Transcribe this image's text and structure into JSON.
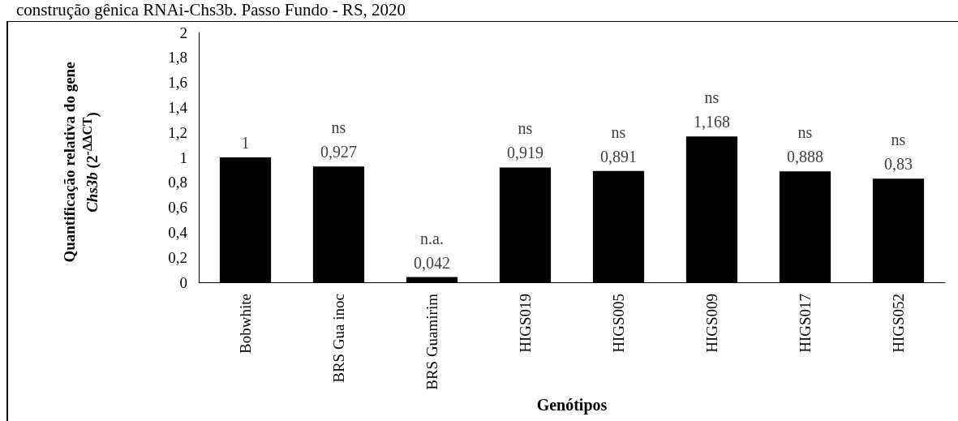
{
  "chart_data": {
    "type": "bar",
    "title": "construção gênica RNAi-Chs3b. Passo Fundo - RS, 2020",
    "xlabel": "Genótipos",
    "ylabel": "Quantificação relativa do gene $^{}$Chs3b (2$^{-ΔΔCT}$)",
    "categories": [
      "Bobwhite",
      "BRS Gua inoc",
      "BRS Guamirim",
      "HIGS019",
      "HIGS005",
      "HIGS009",
      "HIGS017",
      "HIGS052"
    ],
    "values": [
      1,
      0.927,
      0.042,
      0.919,
      0.891,
      1.168,
      0.888,
      0.83
    ],
    "value_labels": [
      "1",
      "0,927",
      "0,042",
      "0,919",
      "0,891",
      "1,168",
      "0,888",
      "0,83"
    ],
    "color": "#000000",
    "ylim": [
      0,
      2
    ],
    "yticks": [
      0,
      {
        "value": 0.2,
        "label": "0,2"
      },
      {
        "value": 0.4,
        "label": "0,4"
      },
      {
        "value": 0.6,
        "label": "0,6"
      },
      {
        "value": 0.8,
        "label": "0,8"
      },
      1,
      {
        "value": 1.2,
        "label": "1,2"
      },
      {
        "value": 1.4,
        "label": "1,4"
      },
      {
        "value": 1.6,
        "label": "1,6"
      },
      {
        "value": 1.8,
        "label": "1,8"
      },
      2
    ],
    "annotations": [
      {
        "text": "ns",
        "x": "BRS Gua inoc",
        "y": 0.927
      },
      {
        "text": "n.a.",
        "x": "BRS Guamirim",
        "y": 0.042
      },
      {
        "text": "ns",
        "x": "HIGS019",
        "y": 0.919
      },
      {
        "text": "ns",
        "x": "HIGS005",
        "y": 0.891
      },
      {
        "text": "ns",
        "x": "HIGS009",
        "y": 1.168
      },
      {
        "text": "ns",
        "x": "HIGS017",
        "y": 0.888
      },
      {
        "text": "ns",
        "x": "HIGS052",
        "y": 0.83
      }
    ],
    "grid": false
  }
}
